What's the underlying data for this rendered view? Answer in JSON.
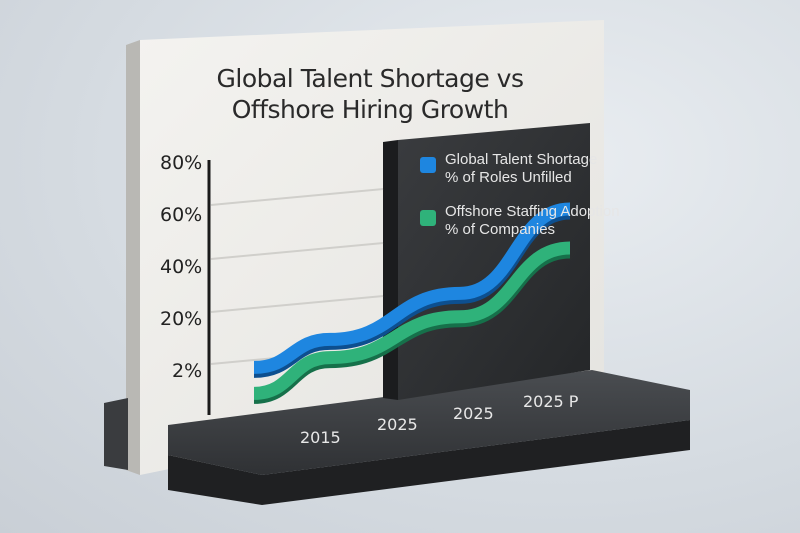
{
  "chart_data": {
    "type": "line",
    "title": "Global Talent Shortage vs Offshore Hiring Growth",
    "title_lines": [
      "Global Talent Shortage vs",
      "Offshore Hiring Growth"
    ],
    "y_tick_labels": [
      "80%",
      "60%",
      "40%",
      "20%",
      "2%"
    ],
    "x_tick_labels": [
      "2015",
      "2025",
      "2025",
      "2025 P"
    ],
    "grid": true,
    "legend_position": "top-right",
    "series": [
      {
        "name_line1": "Global Talent Shortage",
        "name_line2": "% of Roles Unfilled",
        "color": "#1e86e0",
        "values": [
          2,
          12,
          32,
          70
        ]
      },
      {
        "name_line1": "Offshore Staffing Adoption",
        "name_line2": "% of Companies",
        "color": "#2fb27a",
        "values": [
          -18,
          -2,
          14,
          40
        ]
      }
    ]
  }
}
